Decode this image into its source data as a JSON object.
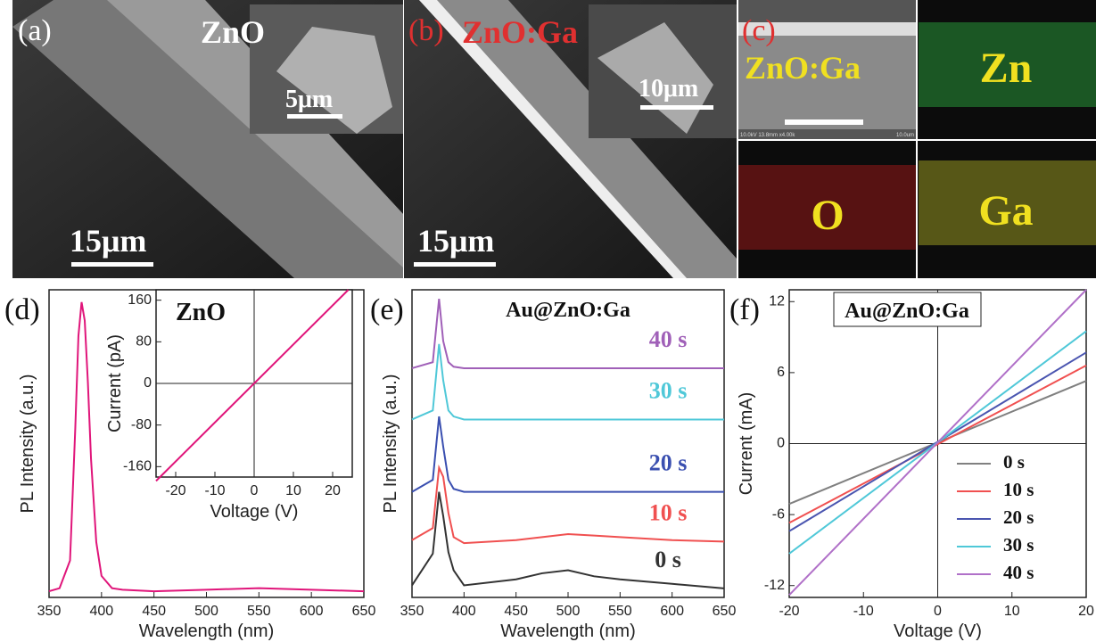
{
  "image_panels": [
    {
      "label": "(a)",
      "material": "ZnO",
      "inset_scale": "5μm",
      "scale": "15μm"
    },
    {
      "label": "(b)",
      "material": "ZnO:Ga",
      "inset_scale": "10μm",
      "scale": "15μm"
    },
    {
      "label": "(c)",
      "material": "ZnO:Ga",
      "maps": [
        "Zn",
        "O",
        "Ga"
      ],
      "micrograph_info": "10.0kV 13.8mm x4.00k",
      "micrograph_scale": "10.0um"
    }
  ],
  "chart_data": [
    {
      "type": "line",
      "panel_label": "(d)",
      "x_label": "Wavelength (nm)",
      "y_label": "PL Intensity (a.u.)",
      "xlim": [
        350,
        650
      ],
      "xticks": [
        350,
        400,
        450,
        500,
        550,
        600,
        650
      ],
      "ylim": [
        0,
        1
      ],
      "x": [
        350,
        360,
        370,
        375,
        378,
        381,
        384,
        387,
        390,
        395,
        400,
        410,
        420,
        450,
        500,
        550,
        600,
        650
      ],
      "series": [
        {
          "color": "#e0157a",
          "values": [
            0.02,
            0.03,
            0.12,
            0.55,
            0.85,
            0.96,
            0.9,
            0.7,
            0.45,
            0.18,
            0.07,
            0.03,
            0.025,
            0.02,
            0.025,
            0.03,
            0.025,
            0.02
          ]
        }
      ],
      "inset": {
        "type": "line",
        "title": "ZnO",
        "x_label": "Voltage (V)",
        "y_label": "Current (pA)",
        "xlim": [
          -25,
          25
        ],
        "xticks": [
          -20,
          -10,
          0,
          10,
          20
        ],
        "ylim": [
          -180,
          180
        ],
        "yticks": [
          -160,
          -80,
          0,
          80,
          160
        ],
        "zero_lines": true,
        "x": [
          -25,
          24
        ],
        "series": [
          {
            "color": "#e0157a",
            "values": [
              -187.5,
              180
            ]
          }
        ]
      }
    },
    {
      "type": "line",
      "panel_label": "(e)",
      "title": "Au@ZnO:Ga",
      "x_label": "Wavelength (nm)",
      "y_label": "PL Intensity (a.u.)",
      "xlim": [
        350,
        650
      ],
      "xticks": [
        350,
        400,
        450,
        500,
        550,
        600,
        650
      ],
      "ylim": [
        0,
        1.02
      ],
      "x": [
        350,
        370,
        376,
        380,
        385,
        390,
        400,
        450,
        475,
        500,
        525,
        550,
        600,
        650
      ],
      "series": [
        {
          "name": "0 s",
          "color": "#333333",
          "values": [
            0.04,
            0.145,
            0.35,
            0.27,
            0.15,
            0.09,
            0.04,
            0.06,
            0.08,
            0.09,
            0.07,
            0.06,
            0.045,
            0.03
          ]
        },
        {
          "name": "10 s",
          "color": "#f05050",
          "values": [
            0.19,
            0.23,
            0.43,
            0.4,
            0.28,
            0.2,
            0.18,
            0.19,
            0.2,
            0.21,
            0.205,
            0.2,
            0.19,
            0.185
          ]
        },
        {
          "name": "20 s",
          "color": "#3a4fb0",
          "values": [
            0.35,
            0.39,
            0.6,
            0.5,
            0.39,
            0.36,
            0.35,
            0.35,
            0.35,
            0.35,
            0.35,
            0.35,
            0.35,
            0.35
          ]
        },
        {
          "name": "30 s",
          "color": "#4fc8d8",
          "values": [
            0.59,
            0.62,
            0.84,
            0.72,
            0.62,
            0.6,
            0.59,
            0.59,
            0.59,
            0.59,
            0.59,
            0.59,
            0.59,
            0.59
          ]
        },
        {
          "name": "40 s",
          "color": "#a060b8",
          "values": [
            0.76,
            0.78,
            0.99,
            0.85,
            0.78,
            0.765,
            0.76,
            0.76,
            0.76,
            0.76,
            0.76,
            0.76,
            0.76,
            0.76
          ]
        }
      ]
    },
    {
      "type": "line",
      "panel_label": "(f)",
      "title": "Au@ZnO:Ga",
      "title_box": true,
      "x_label": "Voltage (V)",
      "y_label": "Current (mA)",
      "xlim": [
        -20,
        20
      ],
      "xticks": [
        -20,
        -10,
        0,
        10,
        20
      ],
      "ylim": [
        -13,
        13
      ],
      "yticks": [
        -12,
        -6,
        0,
        6,
        12
      ],
      "zero_lines": true,
      "legend": "lower right",
      "x": [
        -20,
        20
      ],
      "series": [
        {
          "name": "0 s",
          "color": "#808080",
          "values": [
            -5.1,
            5.3
          ]
        },
        {
          "name": "10 s",
          "color": "#f05050",
          "values": [
            -6.7,
            6.6
          ]
        },
        {
          "name": "20 s",
          "color": "#4a55b0",
          "values": [
            -7.4,
            7.7
          ]
        },
        {
          "name": "30 s",
          "color": "#4fc8d8",
          "values": [
            -9.3,
            9.5
          ]
        },
        {
          "name": "40 s",
          "color": "#b070c8",
          "values": [
            -12.8,
            13
          ]
        }
      ]
    }
  ]
}
